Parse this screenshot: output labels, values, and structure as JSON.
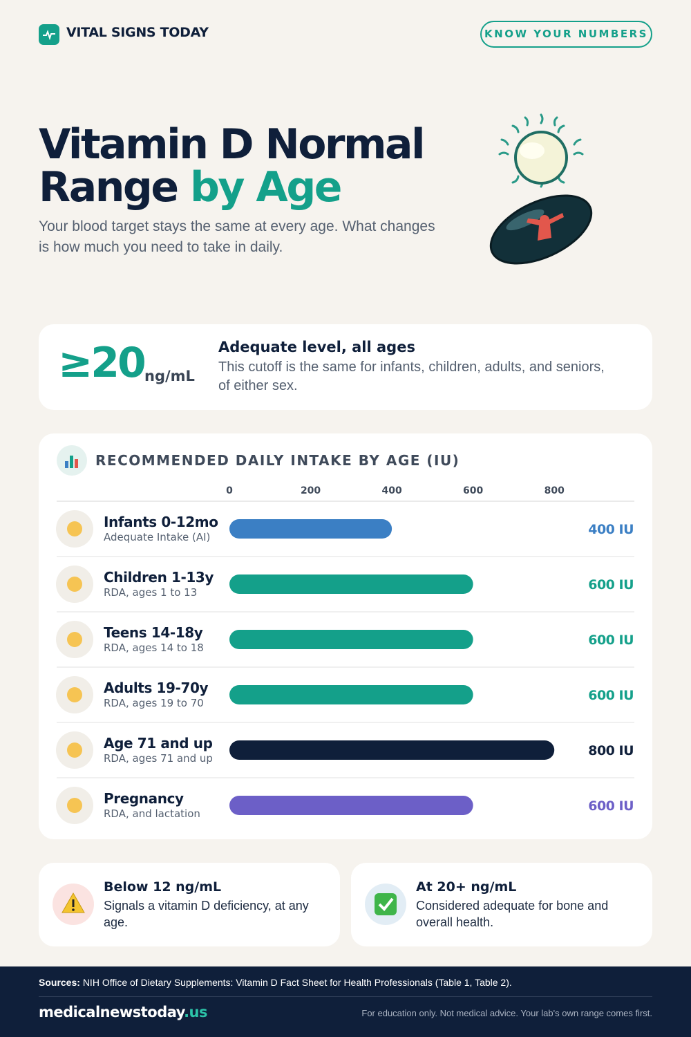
{
  "header": {
    "brand": "VITAL SIGNS TODAY",
    "badge": "KNOW YOUR NUMBERS"
  },
  "hero": {
    "title_line1": "Vitamin D Normal",
    "title_line2_a": "Range",
    "title_line2_b": "by Age",
    "subtitle": "Your blood target stays the same at every age. What changes is how much you need to take in daily."
  },
  "cutoff": {
    "level": "≥20",
    "unit": "ng/mL",
    "heading": "Adequate level, all ages",
    "text": "This cutoff is the same for infants, children, adults, and seniors, of either sex."
  },
  "chart_data": {
    "type": "bar",
    "orientation": "horizontal",
    "title": "RECOMMENDED DAILY INTAKE BY AGE (IU)",
    "categories": [
      "Infants 0-12mo",
      "Children 1-13y",
      "Teens 14-18y",
      "Adults 19-70y",
      "Age 71 and up",
      "Pregnancy"
    ],
    "category_notes": [
      "Adequate Intake (AI)",
      "RDA, ages 1 to 13",
      "RDA, ages 14 to 18",
      "RDA, ages 19 to 70",
      "RDA, ages 71 and up",
      "RDA, and lactation"
    ],
    "values": [
      400,
      600,
      600,
      600,
      800,
      600
    ],
    "value_labels": [
      "400 IU",
      "600 IU",
      "600 IU",
      "600 IU",
      "800 IU",
      "600 IU"
    ],
    "colors": [
      "#3b7fc4",
      "#14a08a",
      "#14a08a",
      "#14a08a",
      "#0f1f3a",
      "#6c5fc7"
    ],
    "xlim": [
      0,
      900
    ],
    "xticks": [
      0,
      200,
      400,
      600,
      800
    ],
    "grid": false
  },
  "notes": [
    {
      "heading": "Below 12 ng/mL",
      "text": "Signals a vitamin D deficiency, at any age."
    },
    {
      "heading": "At 20+ ng/mL",
      "text": "Considered adequate for bone and overall health."
    }
  ],
  "footer": {
    "sources_label": "Sources:",
    "sources": "NIH Office of Dietary Supplements: Vitamin D Fact Sheet for Health Professionals (Table 1, Table 2).",
    "site_name": "medicalnewstoday",
    "site_tld": ".us",
    "disclaimer": "For education only. Not medical advice. Your lab's own range comes first."
  }
}
